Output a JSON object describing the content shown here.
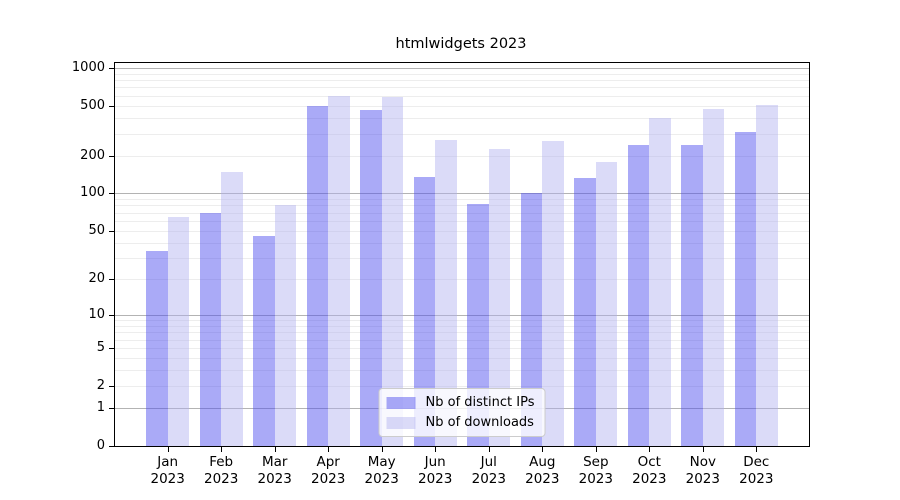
{
  "chart_data": {
    "type": "bar",
    "title": "htmlwidgets 2023",
    "categories": [
      "Jan",
      "Feb",
      "Mar",
      "Apr",
      "May",
      "Jun",
      "Jul",
      "Aug",
      "Sep",
      "Oct",
      "Nov",
      "Dec"
    ],
    "year_label": "2023",
    "series": [
      {
        "name": "Nb of distinct IPs",
        "color": "rgba(74,74,238,0.47)",
        "values": [
          34,
          70,
          45,
          495,
          458,
          136,
          82,
          101,
          132,
          242,
          242,
          308
        ]
      },
      {
        "name": "Nb of downloads",
        "color": "rgba(175,175,239,0.45)",
        "values": [
          64,
          149,
          80,
          595,
          585,
          266,
          227,
          261,
          177,
          400,
          472,
          502
        ]
      }
    ],
    "y_axis": {
      "scale": "log10(1+v)",
      "ticks": [
        0,
        1,
        2,
        5,
        10,
        20,
        50,
        100,
        200,
        500,
        1000
      ],
      "tick_labels": [
        "0",
        "1",
        "2",
        "5",
        "10",
        "20",
        "50",
        "100",
        "200",
        "500",
        "1000"
      ],
      "range": [
        0,
        1090
      ],
      "major_gridlines": [
        1,
        10,
        100,
        1000
      ],
      "minor_gridlines": [
        2,
        3,
        4,
        5,
        6,
        7,
        8,
        9,
        20,
        30,
        40,
        50,
        60,
        70,
        80,
        90,
        200,
        300,
        400,
        500,
        600,
        700,
        800,
        900
      ]
    },
    "x_axis": {
      "tick_count": 12
    },
    "legend_position": "lower center",
    "grid": true,
    "xlabel": "",
    "ylabel": ""
  },
  "colors": {
    "axis": "#000000",
    "grid_minor": "#ededed",
    "grid_major": "#b3b3b3",
    "bar_distinct_ips": "rgba(74,74,238,0.47)",
    "bar_downloads": "rgba(175,175,239,0.45)",
    "legend_border": "#cccccc",
    "legend_background": "rgba(255,255,255,0.8)",
    "text": "#000000",
    "background": "#ffffff"
  }
}
